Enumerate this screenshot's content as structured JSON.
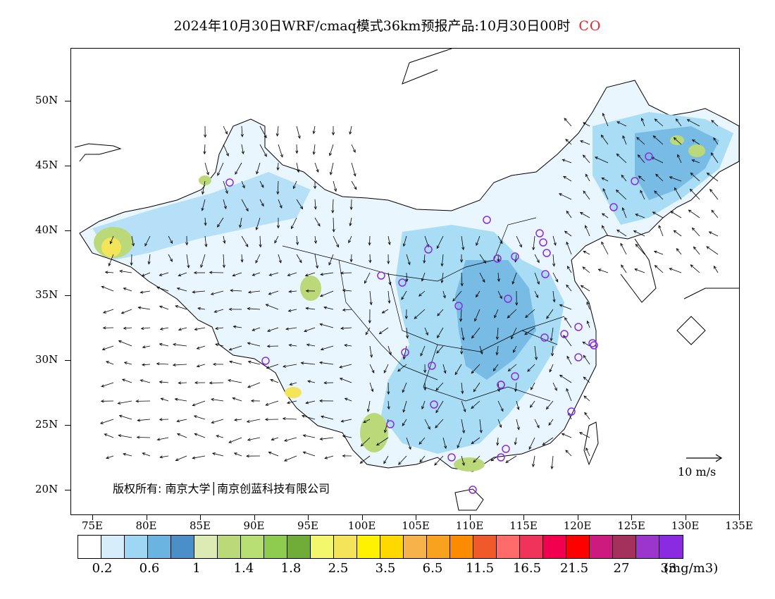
{
  "title": {
    "main": "2024年10月30日WRF/cmaq模式36km预报产品:10月30日00时",
    "species": "CO"
  },
  "map": {
    "latitude_labels": [
      "50N",
      "45N",
      "40N",
      "35N",
      "30N",
      "25N",
      "20N"
    ],
    "longitude_labels": [
      "75E",
      "80E",
      "85E",
      "90E",
      "95E",
      "100E",
      "105E",
      "110E",
      "115E",
      "120E",
      "125E",
      "130E",
      "135E"
    ],
    "credit": "版权所有: 南京大学│南京创蓝科技有限公司",
    "vector_reference": "10 m/s",
    "station_marker_color": "#8a2be2"
  },
  "legend": {
    "colors": [
      "#ffffff",
      "#d6eefb",
      "#9ed7f3",
      "#6bb3e0",
      "#4a8fc7",
      "#dcebb3",
      "#bcd97a",
      "#b7df74",
      "#8dcc4f",
      "#6fad38",
      "#f2f76b",
      "#f3e45a",
      "#fff200",
      "#ffd800",
      "#f7b24a",
      "#f9a21f",
      "#fb8c00",
      "#f05a2a",
      "#ff6a6a",
      "#f0335a",
      "#f2004f",
      "#ff0000",
      "#cc1a7f",
      "#a3315c",
      "#9c35cc",
      "#8a2be2"
    ],
    "labels": [
      "0.2",
      "0.6",
      "1",
      "1.4",
      "1.8",
      "2.5",
      "3.5",
      "6.5",
      "11.5",
      "16.5",
      "21.5",
      "27",
      "33"
    ],
    "unit": "(mg/m3)"
  }
}
